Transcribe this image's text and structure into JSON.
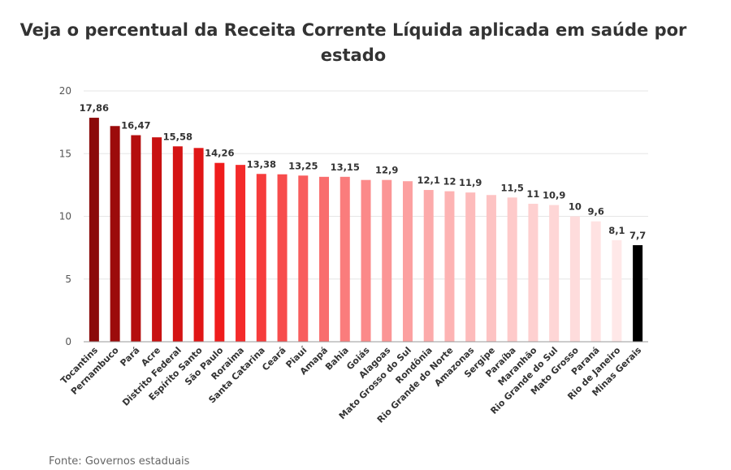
{
  "chart_data": {
    "type": "bar",
    "title": "Veja o percentual da Receita Corrente Líquida aplicada em saúde por estado",
    "xlabel": "",
    "ylabel": "",
    "ylim": [
      0,
      20
    ],
    "yticks": [
      "0",
      "5",
      "10",
      "15",
      "20"
    ],
    "grid": true,
    "categories": [
      "Tocantins",
      "Pernambuco",
      "Pará",
      "Acre",
      "Distrito Federal",
      "Espírito Santo",
      "São Paulo",
      "Roraima",
      "Santa Catarina",
      "Ceará",
      "Piauí",
      "Amapá",
      "Bahia",
      "Goiás",
      "Alagoas",
      "Mato Grosso do Sul",
      "Rondônia",
      "Rio Grande do Norte",
      "Amazonas",
      "Sergipe",
      "Paraíba",
      "Maranhão",
      "Rio Grande do Sul",
      "Mato Grosso",
      "Paraná",
      "Rio de Janeiro",
      "Minas Gerais"
    ],
    "values": [
      17.86,
      17.2,
      16.47,
      16.3,
      15.58,
      15.45,
      14.26,
      14.1,
      13.38,
      13.35,
      13.25,
      13.15,
      13.15,
      12.9,
      12.9,
      12.8,
      12.1,
      12.0,
      11.9,
      11.7,
      11.5,
      11.0,
      10.9,
      10.0,
      9.6,
      8.1,
      7.7
    ],
    "data_labels": [
      "17,86",
      "",
      "16,47",
      "",
      "15,58",
      "",
      "14,26",
      "",
      "13,38",
      "",
      "13,25",
      "",
      "13,15",
      "",
      "12,9",
      "",
      "12,1",
      "12",
      "11,9",
      "",
      "11,5",
      "11",
      "10,9",
      "10",
      "9,6",
      "8,1",
      "7,7"
    ],
    "colors": [
      "#8b0a0a",
      "#9c0b0b",
      "#b40e0e",
      "#c81111",
      "#d41313",
      "#e01616",
      "#ef1c1c",
      "#f42a2a",
      "#f63c3c",
      "#f74c4c",
      "#f85d5d",
      "#f96d6d",
      "#fa7c7c",
      "#fb8989",
      "#fb9595",
      "#fca0a0",
      "#fcaaaa",
      "#fdb3b3",
      "#fdbbbb",
      "#fdc3c3",
      "#fecaca",
      "#fed0d0",
      "#fed6d6",
      "#fedcdc",
      "#ffe2e2",
      "#ffe8e8",
      "#000000"
    ]
  },
  "source": "Fonte: Governos estaduais"
}
